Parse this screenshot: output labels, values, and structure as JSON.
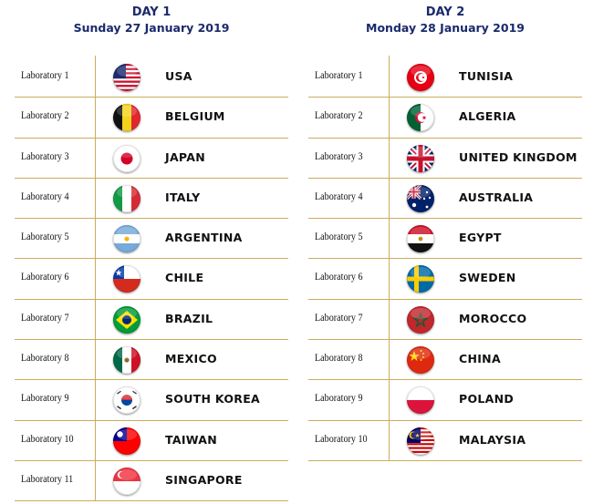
{
  "day1": {
    "title": "DAY 1",
    "date": "Sunday 27 January 2019",
    "rows": [
      {
        "lab": "Laboratory 1",
        "country": "USA",
        "flag": "usa"
      },
      {
        "lab": "Laboratory 2",
        "country": "BELGIUM",
        "flag": "belgium"
      },
      {
        "lab": "Laboratory 3",
        "country": "JAPAN",
        "flag": "japan"
      },
      {
        "lab": "Laboratory 4",
        "country": "ITALY",
        "flag": "italy"
      },
      {
        "lab": "Laboratory 5",
        "country": "ARGENTINA",
        "flag": "argentina"
      },
      {
        "lab": "Laboratory 6",
        "country": "CHILE",
        "flag": "chile"
      },
      {
        "lab": "Laboratory 7",
        "country": "BRAZIL",
        "flag": "brazil"
      },
      {
        "lab": "Laboratory 8",
        "country": "MEXICO",
        "flag": "mexico"
      },
      {
        "lab": "Laboratory 9",
        "country": "SOUTH KOREA",
        "flag": "south-korea"
      },
      {
        "lab": "Laboratory 10",
        "country": "TAIWAN",
        "flag": "taiwan"
      },
      {
        "lab": "Laboratory 11",
        "country": "SINGAPORE",
        "flag": "singapore"
      }
    ]
  },
  "day2": {
    "title": "DAY 2",
    "date": "Monday 28 January 2019",
    "rows": [
      {
        "lab": "Laboratory 1",
        "country": "TUNISIA",
        "flag": "tunisia"
      },
      {
        "lab": "Laboratory 2",
        "country": "ALGERIA",
        "flag": "algeria"
      },
      {
        "lab": "Laboratory 3",
        "country": "UNITED KINGDOM",
        "flag": "united-kingdom"
      },
      {
        "lab": "Laboratory 4",
        "country": "AUSTRALIA",
        "flag": "australia"
      },
      {
        "lab": "Laboratory 5",
        "country": "EGYPT",
        "flag": "egypt"
      },
      {
        "lab": "Laboratory 6",
        "country": "SWEDEN",
        "flag": "sweden"
      },
      {
        "lab": "Laboratory 7",
        "country": "MOROCCO",
        "flag": "morocco"
      },
      {
        "lab": "Laboratory 8",
        "country": "CHINA",
        "flag": "china"
      },
      {
        "lab": "Laboratory 9",
        "country": "POLAND",
        "flag": "poland"
      },
      {
        "lab": "Laboratory 10",
        "country": "MALAYSIA",
        "flag": "malaysia"
      }
    ]
  },
  "colors": {
    "header_text": "#1a2a6b",
    "rule_gold": "#c9ad5c"
  }
}
